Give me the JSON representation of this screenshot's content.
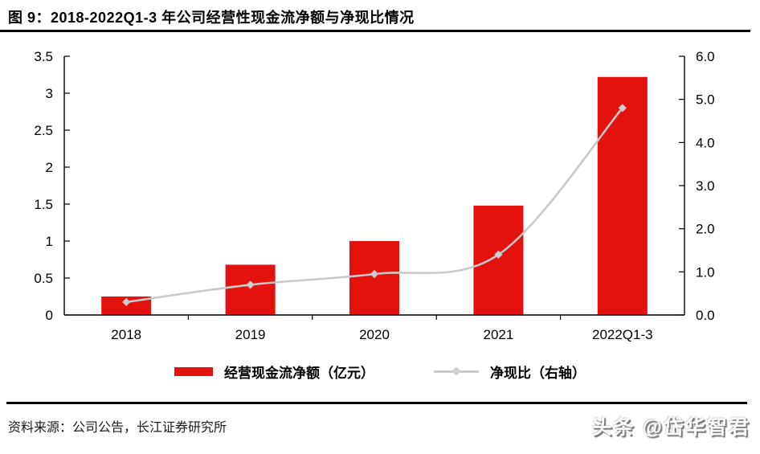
{
  "figure": {
    "title": "图 9：2018-2022Q1-3 年公司经营性现金流净额与净现比情况",
    "source": "资料来源：公司公告，长江证券研究所",
    "watermark": "头条 @岱华智君"
  },
  "legend": {
    "bar_label": "经营现金流净额（亿元）",
    "line_label": "净现比（右轴）"
  },
  "colors": {
    "bar": "#e3120c",
    "line": "#c9c9c9",
    "marker_fill": "#cfcfcf",
    "marker_stroke": "#c2c2c2",
    "axis": "#000000"
  },
  "chart_data": {
    "type": "bar",
    "subtype": "bar+line dual axis",
    "title": "2018-2022Q1-3 年公司经营性现金流净额与净现比情况",
    "categories": [
      "2018",
      "2019",
      "2020",
      "2021",
      "2022Q1-3"
    ],
    "series": [
      {
        "name": "经营现金流净额（亿元）",
        "type": "bar",
        "axis": "left",
        "values": [
          0.25,
          0.68,
          1.0,
          1.48,
          3.22
        ]
      },
      {
        "name": "净现比（右轴）",
        "type": "line",
        "axis": "right",
        "values": [
          0.3,
          0.7,
          0.95,
          1.4,
          4.8
        ]
      }
    ],
    "left_axis": {
      "min": 0,
      "max": 3.5,
      "step": 0.5,
      "ticks": [
        "0",
        "0.5",
        "1",
        "1.5",
        "2",
        "2.5",
        "3",
        "3.5"
      ]
    },
    "right_axis": {
      "min": 0,
      "max": 6.0,
      "step": 1.0,
      "ticks": [
        "0.0",
        "1.0",
        "2.0",
        "3.0",
        "4.0",
        "5.0",
        "6.0"
      ]
    },
    "grid": false,
    "legend_position": "bottom",
    "line_smoothed": true
  }
}
